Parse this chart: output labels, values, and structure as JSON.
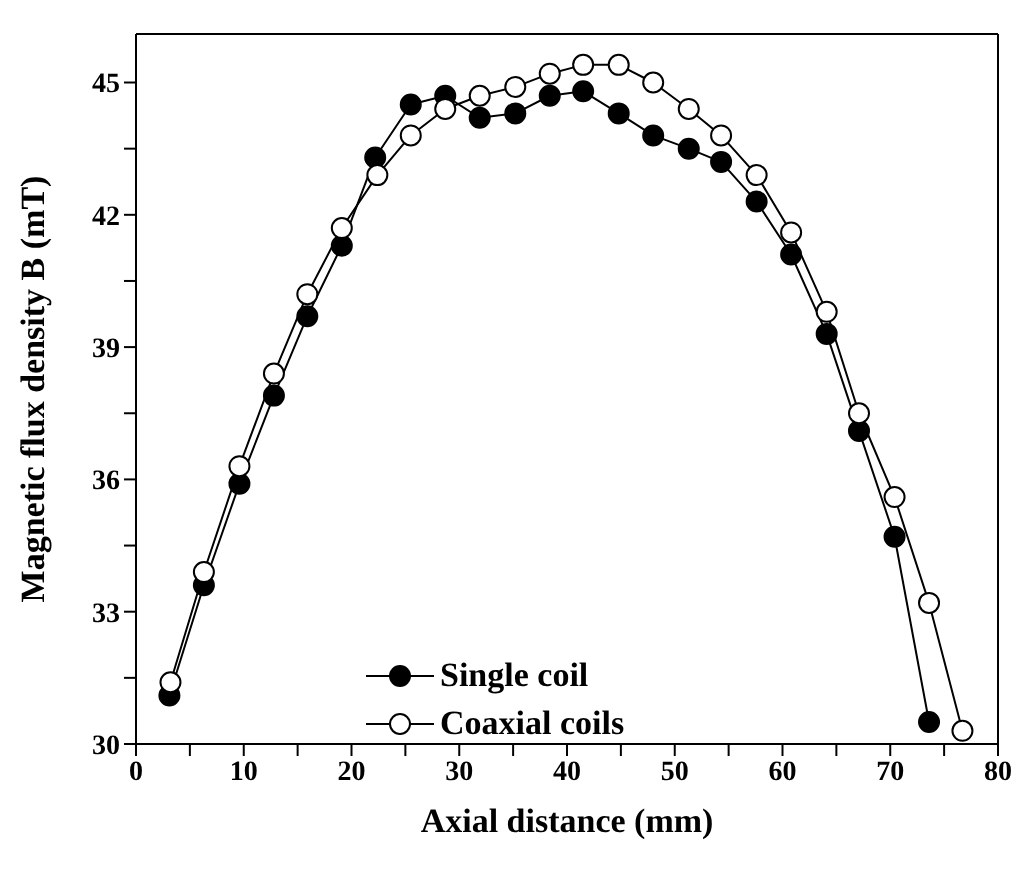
{
  "chart_data": {
    "type": "line",
    "xlabel": "Axial distance (mm)",
    "ylabel": "Magnetic flux density B (mT)",
    "xlim": [
      0,
      80
    ],
    "ylim": [
      30,
      46.1
    ],
    "xticks": [
      0,
      {
        "value": 5,
        "label": null
      },
      10,
      {
        "value": 15,
        "label": null
      },
      20,
      {
        "value": 25,
        "label": null
      },
      30,
      {
        "value": 35,
        "label": null
      },
      40,
      {
        "value": 45,
        "label": null
      },
      50,
      {
        "value": 55,
        "label": null
      },
      60,
      {
        "value": 65,
        "label": null
      },
      70,
      {
        "value": 75,
        "label": null
      },
      80
    ],
    "yticks": [
      30,
      {
        "value": 31.5,
        "label": null
      },
      33,
      {
        "value": 34.5,
        "label": null
      },
      36,
      {
        "value": 37.5,
        "label": null
      },
      39,
      {
        "value": 40.5,
        "label": null
      },
      42,
      {
        "value": 43.5,
        "label": null
      },
      45
    ],
    "legend": "bottom",
    "line_style": "solid",
    "series": [
      {
        "name": "Single coil",
        "color": "#000000",
        "marker": "circle",
        "x": [
          3.1,
          6.3,
          9.6,
          12.8,
          15.9,
          19.1,
          22.2,
          25.5,
          28.7,
          31.9,
          35.2,
          38.4,
          41.5,
          44.8,
          48.0,
          51.3,
          54.3,
          57.6,
          60.8,
          64.1,
          67.1,
          70.4,
          73.6
        ],
        "values": [
          31.1,
          33.6,
          35.9,
          37.9,
          39.7,
          41.3,
          43.3,
          44.5,
          44.7,
          44.2,
          44.3,
          44.7,
          44.8,
          44.3,
          43.8,
          43.5,
          43.2,
          42.3,
          41.1,
          39.3,
          37.1,
          34.7,
          30.5
        ]
      },
      {
        "name": "Coaxial coils",
        "color": "#000000",
        "marker": "circle",
        "x": [
          3.2,
          6.3,
          9.6,
          12.8,
          15.9,
          19.1,
          22.4,
          25.5,
          28.7,
          31.9,
          35.2,
          38.4,
          41.5,
          44.8,
          48.0,
          51.3,
          54.3,
          57.6,
          60.8,
          64.1,
          67.1,
          70.4,
          73.6,
          76.7
        ],
        "values": [
          31.4,
          33.9,
          36.3,
          38.4,
          40.2,
          41.7,
          42.9,
          43.8,
          44.4,
          44.7,
          44.9,
          45.2,
          45.4,
          45.4,
          45.0,
          44.4,
          43.8,
          42.9,
          41.6,
          39.8,
          37.5,
          35.6,
          33.2,
          30.3
        ]
      }
    ]
  }
}
